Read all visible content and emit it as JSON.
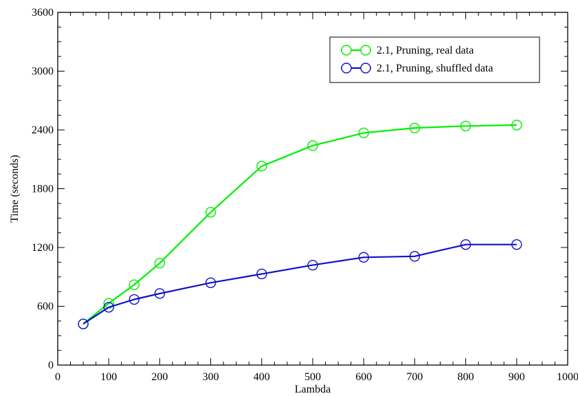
{
  "chart_data": {
    "type": "line",
    "title": "",
    "xlabel": "Lambda",
    "ylabel": "Time (seconds)",
    "xlim": [
      0,
      1000
    ],
    "ylim": [
      0,
      3600
    ],
    "x_ticks": [
      0,
      100,
      200,
      300,
      400,
      500,
      600,
      700,
      800,
      900,
      1000
    ],
    "y_ticks": [
      0,
      600,
      1200,
      1800,
      2400,
      3000,
      3600
    ],
    "x_tick_labels": [
      "0",
      "100",
      "200",
      "300",
      "400",
      "500",
      "600",
      "700",
      "800",
      "900",
      "1000"
    ],
    "y_tick_labels": [
      "0",
      "600",
      "1200",
      "1800",
      "2400",
      "3000",
      "3600"
    ],
    "grid": false,
    "legend_position": "top-right",
    "x": [
      50,
      100,
      150,
      200,
      300,
      400,
      500,
      600,
      700,
      800,
      900
    ],
    "series": [
      {
        "name": "2.1, Pruning, real data",
        "color": "#00ee00",
        "marker": "open-circle",
        "values": [
          420,
          630,
          820,
          1040,
          1560,
          2030,
          2240,
          2370,
          2420,
          2440,
          2450
        ]
      },
      {
        "name": "2.1, Pruning, shuffled data",
        "color": "#1010cc",
        "marker": "open-circle",
        "values": [
          420,
          590,
          670,
          730,
          840,
          930,
          1020,
          1100,
          1110,
          1230,
          1230
        ]
      }
    ]
  }
}
